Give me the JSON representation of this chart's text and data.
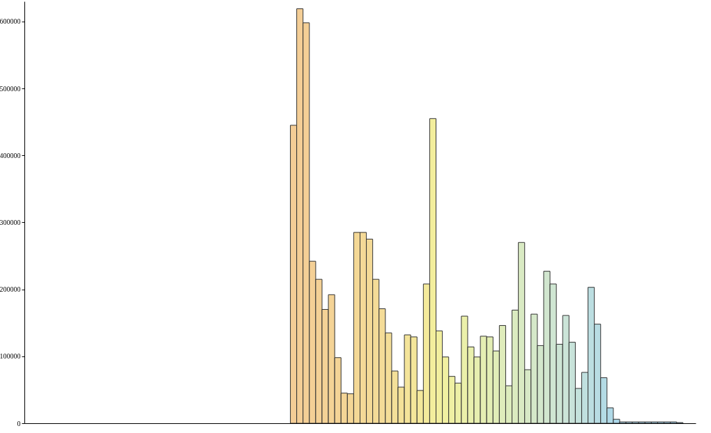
{
  "chart_data": {
    "type": "bar",
    "categories": [
      null,
      null,
      null,
      null,
      null,
      null,
      null,
      null,
      null,
      null,
      null,
      null,
      null,
      null,
      null,
      null,
      null,
      null,
      null,
      null,
      null,
      null,
      null,
      null,
      null,
      null,
      null,
      null,
      null,
      null,
      null,
      null,
      null,
      null,
      null,
      null,
      null,
      null,
      null,
      null,
      null,
      null,
      null,
      null,
      null,
      null,
      null,
      null,
      null,
      null,
      null,
      null,
      null,
      null,
      null,
      null,
      null,
      null,
      null,
      null,
      null,
      null,
      null,
      null,
      null,
      null,
      null,
      null,
      null,
      null,
      null,
      null,
      null,
      null,
      null,
      null,
      null,
      null,
      null,
      null,
      null,
      null,
      null,
      null,
      null,
      null,
      null,
      null,
      null,
      null,
      null,
      null,
      null,
      null,
      null,
      null,
      null,
      null,
      null,
      null,
      null,
      null,
      null,
      null,
      null,
      null
    ],
    "values": [
      0,
      0,
      0,
      0,
      0,
      0,
      0,
      0,
      0,
      0,
      0,
      0,
      0,
      0,
      0,
      0,
      0,
      0,
      0,
      0,
      0,
      0,
      0,
      0,
      0,
      0,
      0,
      0,
      0,
      0,
      0,
      0,
      0,
      0,
      0,
      0,
      0,
      0,
      0,
      0,
      0,
      0,
      445000,
      619000,
      598000,
      242000,
      215000,
      170000,
      192000,
      98000,
      45000,
      44000,
      285000,
      285000,
      275000,
      215000,
      171000,
      135000,
      78000,
      54000,
      132000,
      129000,
      49000,
      208000,
      455000,
      138000,
      99000,
      70000,
      60000,
      160000,
      114000,
      99000,
      130000,
      129000,
      108000,
      146000,
      56000,
      169000,
      270000,
      80000,
      163000,
      116000,
      227000,
      208000,
      118000,
      161000,
      121000,
      52000,
      76000,
      203000,
      148000,
      68000,
      23000,
      6000,
      2000,
      2000,
      2000,
      2000,
      2000,
      2000,
      2000,
      2000,
      2000,
      1000,
      0,
      0
    ],
    "colors": [
      null,
      null,
      null,
      null,
      null,
      null,
      null,
      null,
      null,
      null,
      null,
      null,
      null,
      null,
      null,
      null,
      null,
      null,
      null,
      null,
      null,
      null,
      null,
      null,
      null,
      null,
      null,
      null,
      null,
      null,
      null,
      null,
      null,
      null,
      null,
      null,
      null,
      null,
      null,
      null,
      null,
      null,
      "#f4cd96",
      "#f4ce96",
      "#f4cf96",
      "#f4d096",
      "#f4d196",
      "#f4d296",
      "#f4d396",
      "#f4d496",
      "#f4d596",
      "#f4d696",
      "#f4d896",
      "#f4d997",
      "#f4da97",
      "#f4db97",
      "#f4dc98",
      "#f4de98",
      "#f4e099",
      "#f4e299",
      "#f4e49a",
      "#f4e69a",
      "#f4e89b",
      "#f4ea9c",
      "#f3ee9d",
      "#f2ef9f",
      "#f1f0a1",
      "#eff0a4",
      "#edf0a7",
      "#ebf0aa",
      "#e9f0ad",
      "#e7efb0",
      "#e5eeb3",
      "#e3eeb5",
      "#e1edb8",
      "#dfecbb",
      "#ddecbd",
      "#dbebc0",
      "#d9eac3",
      "#d7e9c6",
      "#d5e8c9",
      "#d3e7cc",
      "#d1e6cf",
      "#cfe6d2",
      "#cde5d5",
      "#cbe4d8",
      "#c8e3da",
      "#c4e2dc",
      "#c0e0df",
      "#bcdee1",
      "#b8dce3",
      "#b4dbe5",
      "#b0d9e7",
      "#acd7e9",
      "#a9d6ea",
      "#a8d5eb",
      "#a7d5eb",
      "#a6d4ec",
      "#a5d4ec",
      "#a4d3ed",
      "#a3d3ed",
      "#a2d2ee",
      "#a1d2ee",
      "#a0d1ef",
      null,
      null
    ],
    "ylim": [
      0,
      630000
    ],
    "yticks": [
      0,
      100000,
      200000,
      300000,
      400000,
      500000,
      600000
    ]
  }
}
